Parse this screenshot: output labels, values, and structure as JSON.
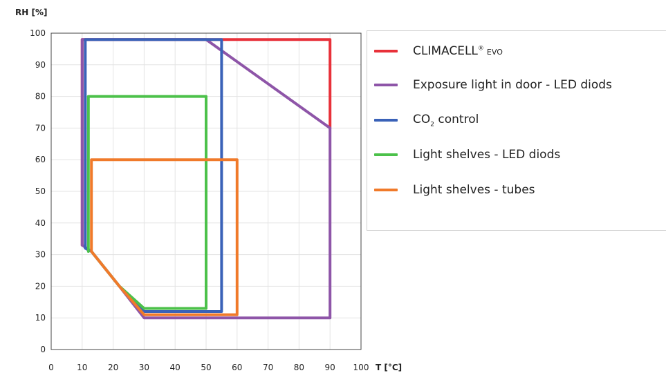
{
  "chart_data": {
    "type": "line",
    "xlabel": "T [°C]",
    "ylabel": "RH [%]",
    "xlim": [
      0,
      100
    ],
    "ylim": [
      0,
      100
    ],
    "x_ticks": [
      "0",
      "10",
      "20",
      "30",
      "40",
      "50",
      "60",
      "70",
      "80",
      "90",
      "100"
    ],
    "y_ticks": [
      "0",
      "10",
      "20",
      "30",
      "40",
      "50",
      "60",
      "70",
      "80",
      "90",
      "100"
    ],
    "grid": true,
    "legend_position": "right",
    "series": [
      {
        "name": "CLIMACELL® EVO",
        "name_main": "CLIMACELL",
        "name_sup": "®",
        "name_suffix": "EVO",
        "color": "#e8313a",
        "points": [
          [
            10,
            33
          ],
          [
            10,
            98
          ],
          [
            90,
            98
          ],
          [
            90,
            70
          ]
        ]
      },
      {
        "name": "Exposure light in door - LED diods",
        "color": "#8e55a8",
        "points": [
          [
            10,
            33
          ],
          [
            10,
            98
          ],
          [
            50,
            98
          ],
          [
            90,
            70
          ],
          [
            90,
            10
          ],
          [
            30,
            10
          ],
          [
            22,
            20
          ],
          [
            13,
            31
          ],
          [
            10,
            33
          ]
        ]
      },
      {
        "name": "CO2 control",
        "name_main": "CO",
        "name_sub": "2",
        "name_suffix": " control",
        "color": "#3a62b8",
        "points": [
          [
            11,
            32
          ],
          [
            11,
            98
          ],
          [
            55,
            98
          ],
          [
            55,
            12
          ],
          [
            30,
            12
          ],
          [
            22,
            20
          ],
          [
            13,
            31
          ],
          [
            11,
            32
          ]
        ]
      },
      {
        "name": "Light shelves - LED diods",
        "color": "#4cc14a",
        "points": [
          [
            12,
            31
          ],
          [
            12,
            80
          ],
          [
            50,
            80
          ],
          [
            50,
            13
          ],
          [
            30,
            13
          ],
          [
            22,
            20
          ],
          [
            13,
            31
          ]
        ]
      },
      {
        "name": "Light shelves - tubes",
        "color": "#f07a2a",
        "points": [
          [
            13,
            31
          ],
          [
            13,
            60
          ],
          [
            60,
            60
          ],
          [
            60,
            11
          ],
          [
            30,
            11
          ],
          [
            22,
            20
          ],
          [
            13,
            31
          ]
        ]
      }
    ]
  }
}
